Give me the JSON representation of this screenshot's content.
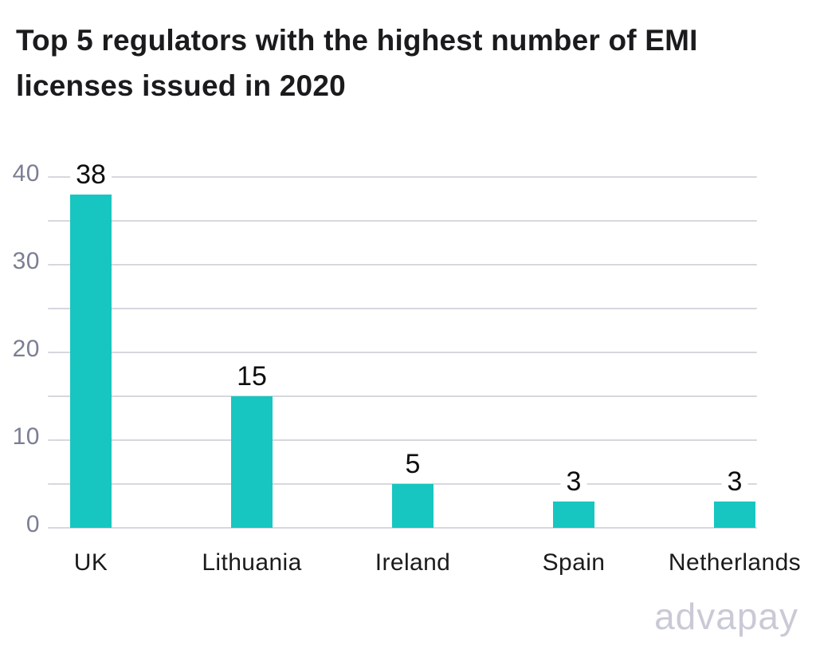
{
  "title": {
    "line1": "Top 5 regulators with the highest number of EMI",
    "line2": "licenses issued in 2020"
  },
  "watermark": "advapay",
  "chart_data": {
    "type": "bar",
    "title": "Top 5 regulators with the highest number of EMI licenses issued in 2020",
    "categories": [
      "UK",
      "Lithuania",
      "Ireland",
      "Spain",
      "Netherlands"
    ],
    "values": [
      38,
      15,
      5,
      3,
      3
    ],
    "xlabel": "",
    "ylabel": "",
    "ylim": [
      0,
      40
    ],
    "yticks": [
      0,
      10,
      20,
      30,
      40
    ],
    "gridline_step": 5,
    "grid": true,
    "legend": "none",
    "colors": {
      "bar": "#17c6c0",
      "gridline": "#d7d7df",
      "tick_label": "#7b7e93",
      "value_label": "#0e0e10",
      "category_label": "#1b1b1d",
      "watermark": "#c9cad6",
      "background": "#ffffff"
    }
  }
}
